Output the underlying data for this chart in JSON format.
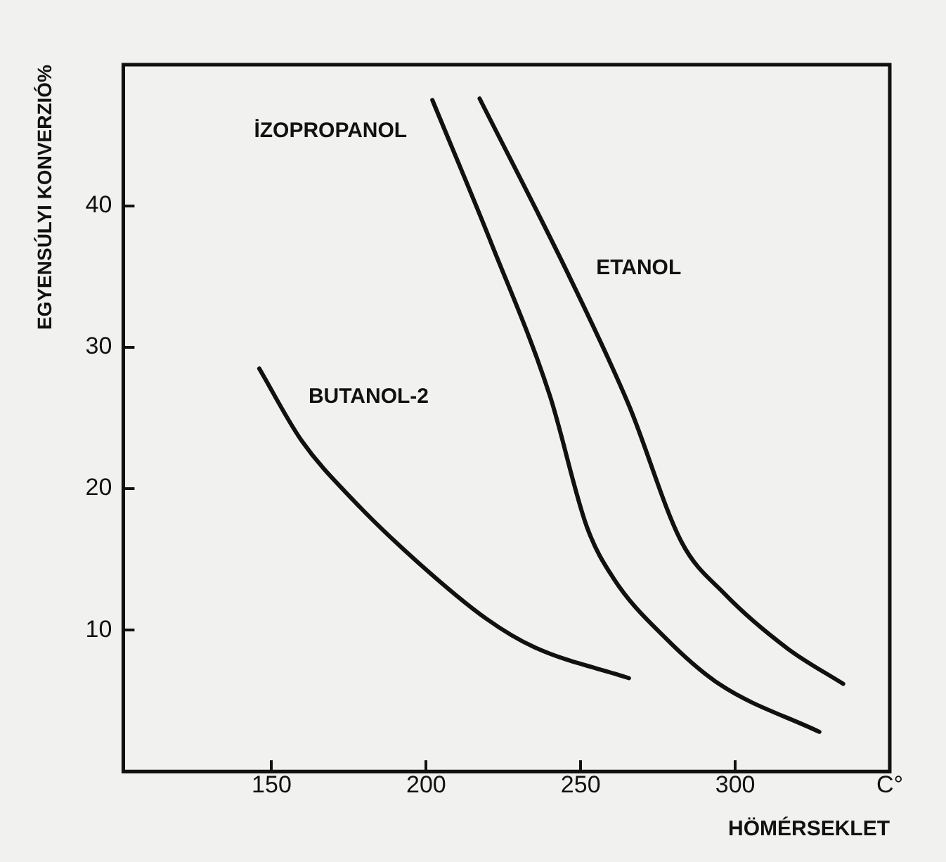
{
  "chart_data": {
    "type": "line",
    "xlabel": "HÖMÉRSEKLET",
    "ylabel": "EGYENSÚLYI KONVERZIÓ%",
    "xlim": [
      102,
      350
    ],
    "xticks": [
      150,
      200,
      250,
      300,
      {
        "value": 350,
        "label": "C°"
      }
    ],
    "ylim": [
      0,
      50
    ],
    "yticks": [
      10,
      20,
      30,
      40
    ],
    "grid": false,
    "legend": false,
    "marker": "none",
    "line_style": "solid",
    "series": [
      {
        "name": "İZOPROPANOL",
        "color": "#111111",
        "x": [
          202,
          221.2,
          240,
          252,
          260.5,
          277.6,
          294.7,
          327.2
        ],
        "values": [
          47.5,
          37.3,
          26.6,
          17.3,
          13.7,
          9.4,
          6.2,
          2.8
        ]
      },
      {
        "name": "ETANOL",
        "color": "#111111",
        "x": [
          217.3,
          246.8,
          265.6,
          282.7,
          296.4,
          316.9,
          334.9
        ],
        "values": [
          47.6,
          34.8,
          25.9,
          16.2,
          12.6,
          8.7,
          6.2
        ]
      },
      {
        "name": "BUTANOL-2",
        "color": "#111111",
        "x": [
          146,
          159.7,
          176.8,
          197.3,
          219.5,
          234.9,
          265.6
        ],
        "values": [
          28.5,
          23.4,
          19.1,
          14.8,
          10.8,
          8.8,
          6.6
        ]
      }
    ]
  }
}
